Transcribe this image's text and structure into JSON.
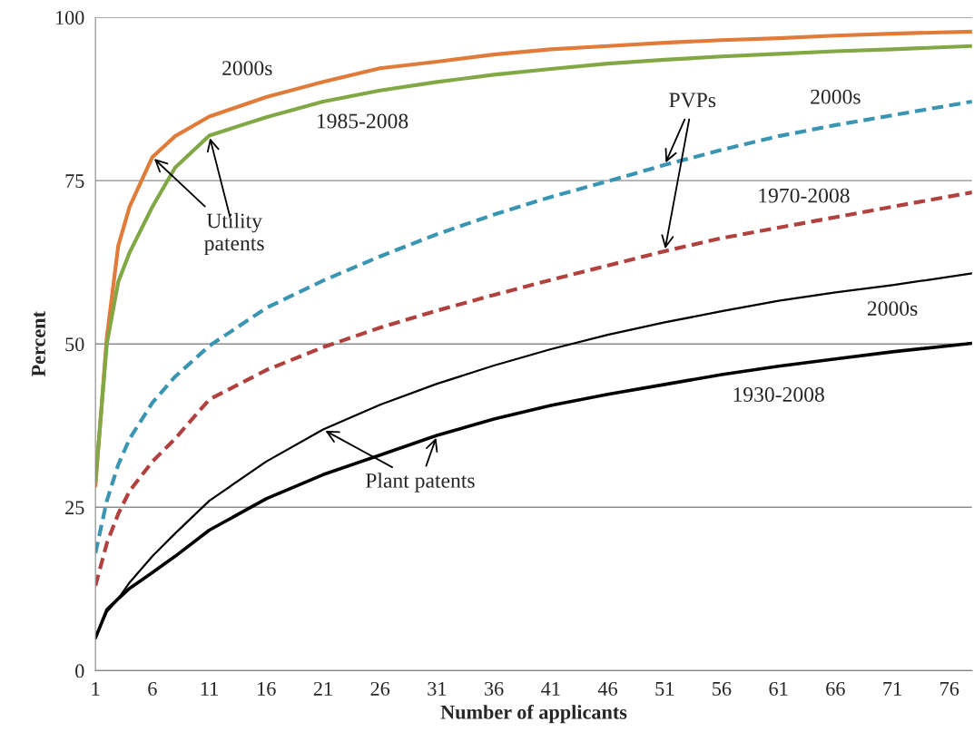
{
  "chart_data": {
    "type": "line",
    "xlabel": "Number of applicants",
    "ylabel": "Percent",
    "x": [
      1,
      2,
      3,
      4,
      6,
      8,
      11,
      16,
      21,
      26,
      31,
      36,
      41,
      46,
      51,
      56,
      61,
      66,
      71,
      78
    ],
    "xlim": [
      1,
      78
    ],
    "xticks": [
      1,
      6,
      11,
      16,
      21,
      26,
      31,
      36,
      41,
      46,
      51,
      56,
      61,
      66,
      71,
      76
    ],
    "ylim": [
      0,
      100
    ],
    "yticks": [
      0,
      25,
      50,
      75,
      100
    ],
    "grid": "y",
    "legend": false,
    "marker": "none",
    "series": [
      {
        "name": "2000s",
        "color": "#e07b39",
        "line_style": "solid",
        "values": [
          28.3,
          51,
          65,
          71,
          78.6,
          81.8,
          84.8,
          87.8,
          90.1,
          92.2,
          93.2,
          94.3,
          95.1,
          95.6,
          96.1,
          96.5,
          96.8,
          97.2,
          97.5,
          97.8
        ]
      },
      {
        "name": "1985-2008",
        "color": "#82a845",
        "line_style": "solid",
        "values": [
          29,
          50,
          59.5,
          64,
          71,
          77,
          81.9,
          84.7,
          87.1,
          88.8,
          90.1,
          91.2,
          92.1,
          92.9,
          93.5,
          94,
          94.4,
          94.8,
          95.1,
          95.6
        ]
      },
      {
        "name": "2000s",
        "color": "#3a95b2",
        "line_style": "dashed",
        "values": [
          18,
          26,
          31.5,
          35.5,
          41,
          45,
          49.7,
          55.5,
          59.7,
          63.4,
          66.8,
          69.8,
          72.5,
          74.9,
          77.4,
          79.7,
          81.8,
          83.5,
          85,
          87.1
        ]
      },
      {
        "name": "1970-2008",
        "color": "#b0413e",
        "line_style": "dashed",
        "values": [
          13,
          19.5,
          24,
          27.5,
          32,
          35.5,
          41.5,
          46,
          49.5,
          52.5,
          55.1,
          57.5,
          59.8,
          62,
          64.2,
          66.2,
          67.8,
          69.4,
          71,
          73.2
        ]
      },
      {
        "name": "2000s",
        "color": "#000000",
        "line_style": "solid",
        "values": [
          5,
          9,
          11,
          13.5,
          17.5,
          21,
          26,
          32,
          36.9,
          40.7,
          43.9,
          46.7,
          49.2,
          51.4,
          53.3,
          55,
          56.6,
          57.9,
          59,
          60.8
        ]
      },
      {
        "name": "1930-2008",
        "color": "#000000",
        "line_style": "solid",
        "values": [
          5,
          9.3,
          11,
          12.6,
          15,
          17.5,
          21.5,
          26.3,
          30,
          33,
          36,
          38.5,
          40.6,
          42.3,
          43.8,
          45.3,
          46.6,
          47.7,
          48.8,
          50.1
        ]
      }
    ],
    "annotations": [
      {
        "text": "Utility\npatents",
        "x": 6,
        "y": 78.6
      },
      {
        "text": "PVPs",
        "x": 51,
        "y": 77.4
      },
      {
        "text": "Plant patents",
        "x": 21,
        "y": 36.9
      }
    ]
  }
}
